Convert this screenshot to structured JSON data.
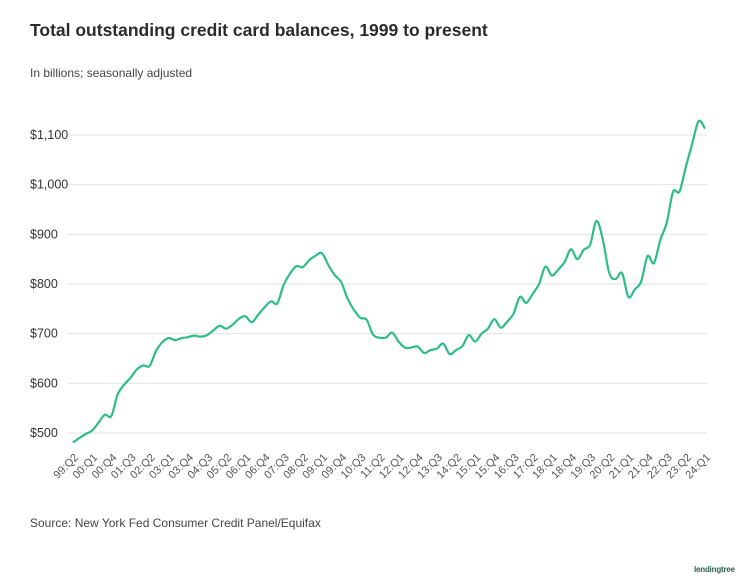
{
  "chart_data": {
    "type": "line",
    "title": "Total outstanding credit card balances, 1999 to present",
    "subtitle": "In billions; seasonally adjusted",
    "source": "Source: New York Fed Consumer Credit Panel/Equifax",
    "logo": "lendingtree",
    "line_color": "#2dbd85",
    "grid": true,
    "ylim": [
      480,
      1130
    ],
    "yticks": [
      500,
      600,
      700,
      800,
      900,
      1000,
      1100
    ],
    "ytick_labels": [
      "$500",
      "$600",
      "$700",
      "$800",
      "$900",
      "$1,000",
      "$1,100"
    ],
    "first_quarter": "99:Q2",
    "last_quarter": "24:Q1",
    "xtick_labels": [
      "99:Q2",
      "00:Q1",
      "00:Q4",
      "01:Q3",
      "02:Q2",
      "03:Q1",
      "03:Q4",
      "04:Q3",
      "05:Q2",
      "06:Q1",
      "06:Q4",
      "07:Q3",
      "08:Q2",
      "09:Q1",
      "09:Q4",
      "10:Q3",
      "11:Q2",
      "12:Q1",
      "12:Q4",
      "13:Q3",
      "14:Q2",
      "15:Q1",
      "15:Q4",
      "16:Q3",
      "17:Q2",
      "18:Q1",
      "18:Q4",
      "19:Q3",
      "20:Q2",
      "21:Q1",
      "21:Q4",
      "22:Q3",
      "23:Q2",
      "24:Q1"
    ],
    "values": [
      481,
      490,
      498,
      505,
      521,
      537,
      534,
      578,
      597,
      611,
      628,
      636,
      635,
      665,
      683,
      691,
      687,
      691,
      693,
      696,
      694,
      697,
      707,
      716,
      710,
      718,
      730,
      735,
      723,
      738,
      753,
      765,
      761,
      798,
      821,
      836,
      834,
      848,
      857,
      862,
      838,
      818,
      804,
      771,
      748,
      732,
      728,
      698,
      692,
      692,
      702,
      684,
      672,
      672,
      674,
      661,
      667,
      670,
      680,
      659,
      667,
      675,
      697,
      684,
      700,
      710,
      729,
      712,
      724,
      740,
      774,
      762,
      780,
      800,
      835,
      817,
      829,
      844,
      870,
      850,
      869,
      879,
      927,
      889,
      822,
      810,
      822,
      774,
      789,
      805,
      856,
      842,
      889,
      923,
      986,
      986,
      1036,
      1083,
      1128,
      1113
    ]
  }
}
